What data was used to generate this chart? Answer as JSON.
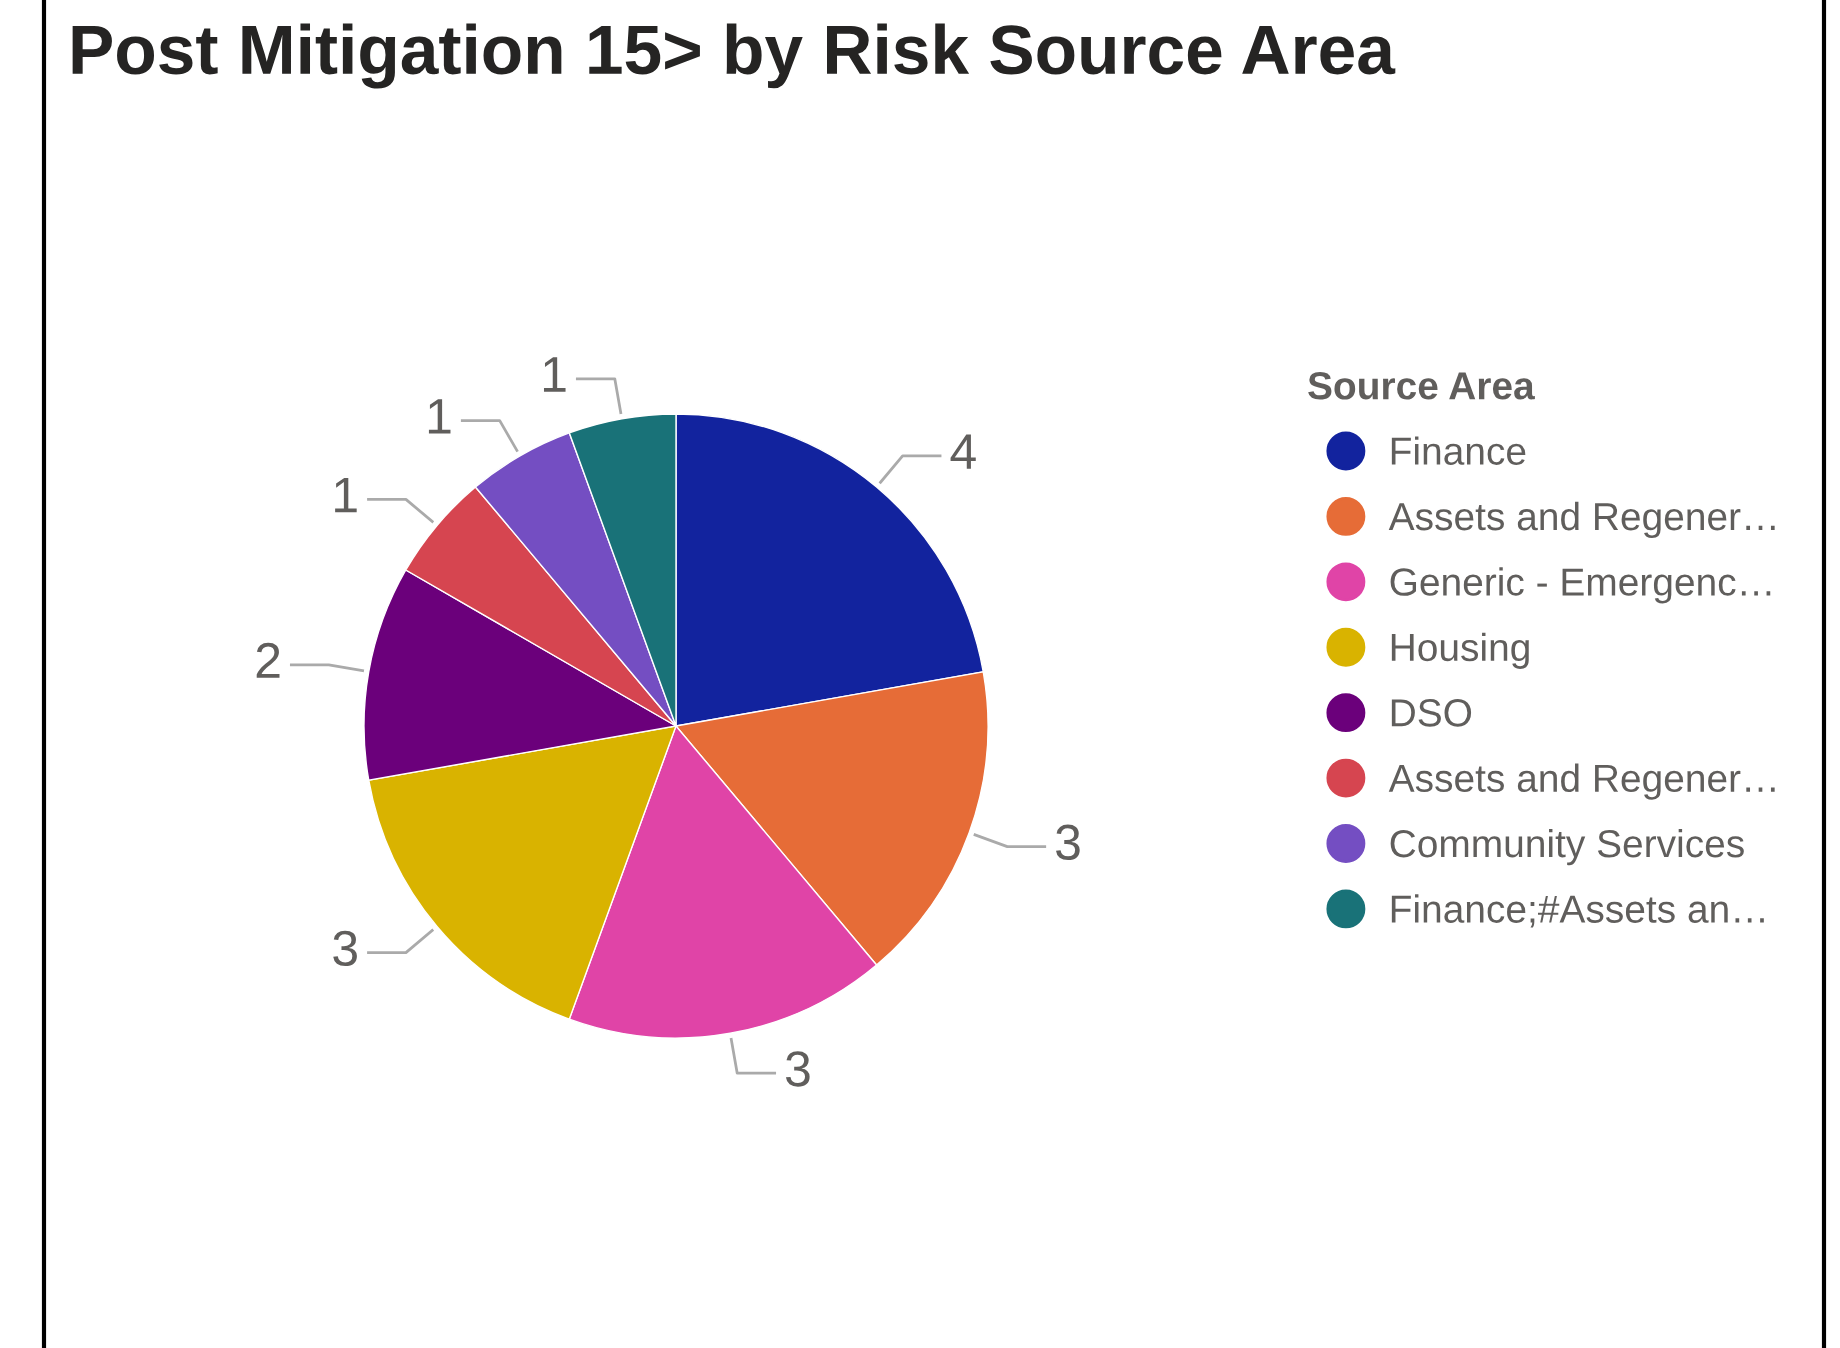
{
  "chart_data": {
    "type": "pie",
    "title": "Post Mitigation 15> by Risk Source Area",
    "legend_title": "Source Area",
    "legend": "right",
    "data_labels": true,
    "categories": [
      "Finance",
      "Assets and Regener…",
      "Generic - Emergenc…",
      "Housing",
      "DSO",
      "Assets and Regener…",
      "Community Services",
      "Finance;#Assets an…"
    ],
    "values": [
      4,
      3,
      3,
      3,
      2,
      1,
      1,
      1
    ],
    "colors": [
      "#12239e",
      "#e66c37",
      "#e044a7",
      "#d9b300",
      "#6b007b",
      "#d64550",
      "#744ec2",
      "#197278"
    ]
  }
}
